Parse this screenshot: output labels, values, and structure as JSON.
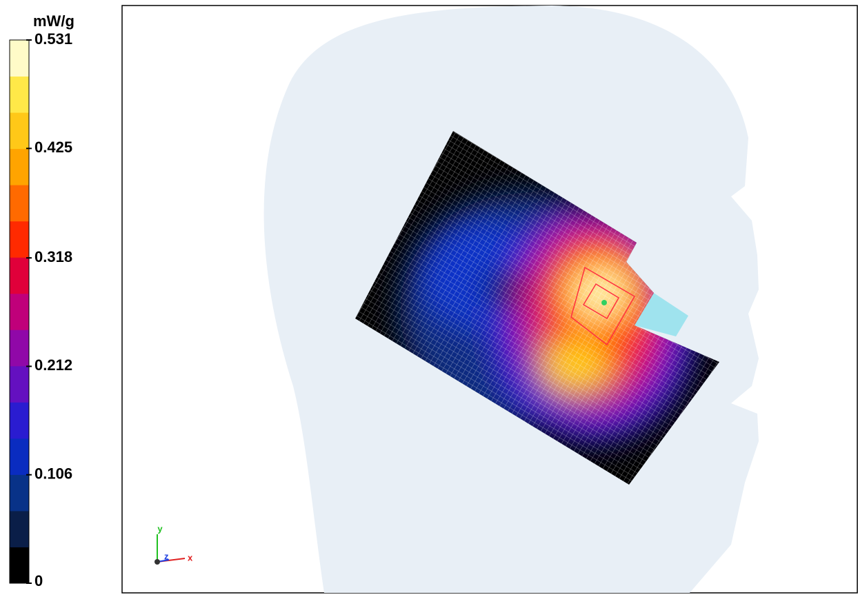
{
  "colorbar": {
    "unit": "mW/g",
    "ticks": [
      0.531,
      0.425,
      0.318,
      0.212,
      0.106,
      0
    ],
    "band_colors": [
      "#000000",
      "#0a1e48",
      "#083288",
      "#0a2cc0",
      "#2a1cd0",
      "#6410c0",
      "#9008a8",
      "#c0007a",
      "#e0003a",
      "#ff2a00",
      "#ff6a00",
      "#ffa400",
      "#ffc818",
      "#ffe848",
      "#fffbc8"
    ]
  },
  "triad": {
    "y": "y",
    "z": "z",
    "x": "x"
  }
}
